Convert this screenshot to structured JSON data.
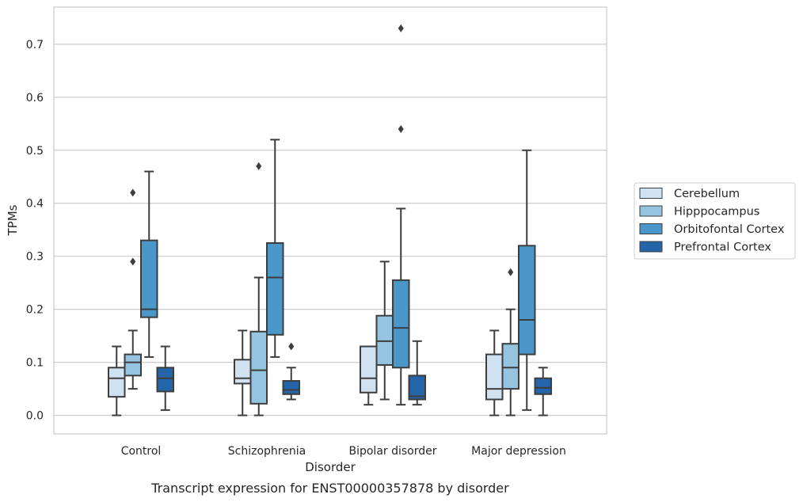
{
  "chart_data": {
    "type": "box",
    "title": "",
    "caption": "Transcript expression for ENST00000357878 by disorder",
    "xlabel": "Disorder",
    "ylabel": "TPMs",
    "ylim": [
      -0.035,
      0.77
    ],
    "yticks": [
      "0.0",
      "0.1",
      "0.2",
      "0.3",
      "0.4",
      "0.5",
      "0.6",
      "0.7"
    ],
    "grid": "horizontal",
    "legend_position": "right",
    "categories": [
      "Control",
      "Schizophrenia",
      "Bipolar disorder",
      "Major depression"
    ],
    "series": [
      {
        "name": "Cerebellum",
        "color": "#d0e1f2",
        "boxes": [
          {
            "whisker_low": 0.0,
            "q1": 0.035,
            "median": 0.07,
            "q3": 0.09,
            "whisker_high": 0.13,
            "outliers": []
          },
          {
            "whisker_low": 0.0,
            "q1": 0.06,
            "median": 0.07,
            "q3": 0.105,
            "whisker_high": 0.16,
            "outliers": []
          },
          {
            "whisker_low": 0.02,
            "q1": 0.043,
            "median": 0.07,
            "q3": 0.13,
            "whisker_high": 0.13,
            "outliers": []
          },
          {
            "whisker_low": 0.0,
            "q1": 0.03,
            "median": 0.05,
            "q3": 0.115,
            "whisker_high": 0.16,
            "outliers": []
          }
        ]
      },
      {
        "name": "Hipppocampus",
        "color": "#94c4df",
        "boxes": [
          {
            "whisker_low": 0.05,
            "q1": 0.075,
            "median": 0.1,
            "q3": 0.115,
            "whisker_high": 0.16,
            "outliers": [
              0.29,
              0.42
            ]
          },
          {
            "whisker_low": 0.0,
            "q1": 0.022,
            "median": 0.085,
            "q3": 0.158,
            "whisker_high": 0.26,
            "outliers": [
              0.47
            ]
          },
          {
            "whisker_low": 0.03,
            "q1": 0.095,
            "median": 0.14,
            "q3": 0.188,
            "whisker_high": 0.29,
            "outliers": []
          },
          {
            "whisker_low": 0.0,
            "q1": 0.05,
            "median": 0.09,
            "q3": 0.135,
            "whisker_high": 0.2,
            "outliers": [
              0.27
            ]
          }
        ]
      },
      {
        "name": "Orbitofontal Cortex",
        "color": "#4a98c9",
        "boxes": [
          {
            "whisker_low": 0.11,
            "q1": 0.185,
            "median": 0.2,
            "q3": 0.33,
            "whisker_high": 0.46,
            "outliers": []
          },
          {
            "whisker_low": 0.11,
            "q1": 0.152,
            "median": 0.26,
            "q3": 0.325,
            "whisker_high": 0.52,
            "outliers": []
          },
          {
            "whisker_low": 0.02,
            "q1": 0.09,
            "median": 0.165,
            "q3": 0.255,
            "whisker_high": 0.39,
            "outliers": [
              0.54,
              0.73
            ]
          },
          {
            "whisker_low": 0.01,
            "q1": 0.115,
            "median": 0.18,
            "q3": 0.32,
            "whisker_high": 0.5,
            "outliers": []
          }
        ]
      },
      {
        "name": "Prefrontal Cortex",
        "color": "#2465a9",
        "boxes": [
          {
            "whisker_low": 0.01,
            "q1": 0.045,
            "median": 0.07,
            "q3": 0.09,
            "whisker_high": 0.13,
            "outliers": []
          },
          {
            "whisker_low": 0.03,
            "q1": 0.04,
            "median": 0.048,
            "q3": 0.065,
            "whisker_high": 0.09,
            "outliers": [
              0.13
            ]
          },
          {
            "whisker_low": 0.02,
            "q1": 0.03,
            "median": 0.036,
            "q3": 0.075,
            "whisker_high": 0.14,
            "outliers": []
          },
          {
            "whisker_low": 0.0,
            "q1": 0.04,
            "median": 0.052,
            "q3": 0.07,
            "whisker_high": 0.09,
            "outliers": []
          }
        ]
      }
    ]
  }
}
